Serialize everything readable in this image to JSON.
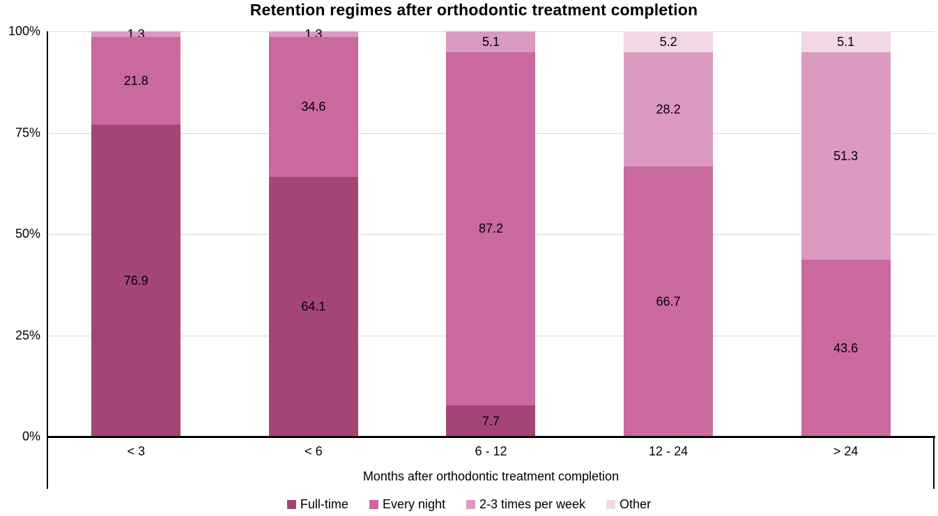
{
  "title": "Retention regimes after orthodontic treatment completion",
  "chart_data": {
    "type": "bar",
    "stacked": true,
    "percent_stacked": true,
    "title": "Retention regimes after orthodontic treatment completion",
    "xlabel": "Months after orthodontic treatment completion",
    "ylabel": "",
    "ylim": [
      0,
      100
    ],
    "grid": true,
    "gridline_color": "#d9d9d9",
    "axis_color": "#000000",
    "legend_position": "bottom",
    "categories": [
      "< 3",
      "< 6",
      "6 - 12",
      "12 - 24",
      "> 24"
    ],
    "y_ticks": [
      {
        "label": "100%",
        "value": 100
      },
      {
        "label": "75%",
        "value": 75
      },
      {
        "label": "50%",
        "value": 50
      },
      {
        "label": "25%",
        "value": 25
      },
      {
        "label": "0%",
        "value": 0
      }
    ],
    "series": [
      {
        "name": "Full-time",
        "color": "#A34677",
        "values": [
          76.9,
          64.1,
          7.7,
          0,
          0
        ]
      },
      {
        "name": "Every night",
        "color": "#C9699E",
        "values": [
          21.8,
          34.6,
          87.2,
          66.7,
          43.6
        ]
      },
      {
        "name": "2-3 times per week",
        "color": "#DB9ABF",
        "values": [
          1.3,
          1.3,
          5.1,
          28.2,
          51.3
        ]
      },
      {
        "name": "Other",
        "color": "#F2D7E5",
        "values": [
          0,
          0,
          0,
          5.2,
          5.1
        ]
      }
    ]
  }
}
